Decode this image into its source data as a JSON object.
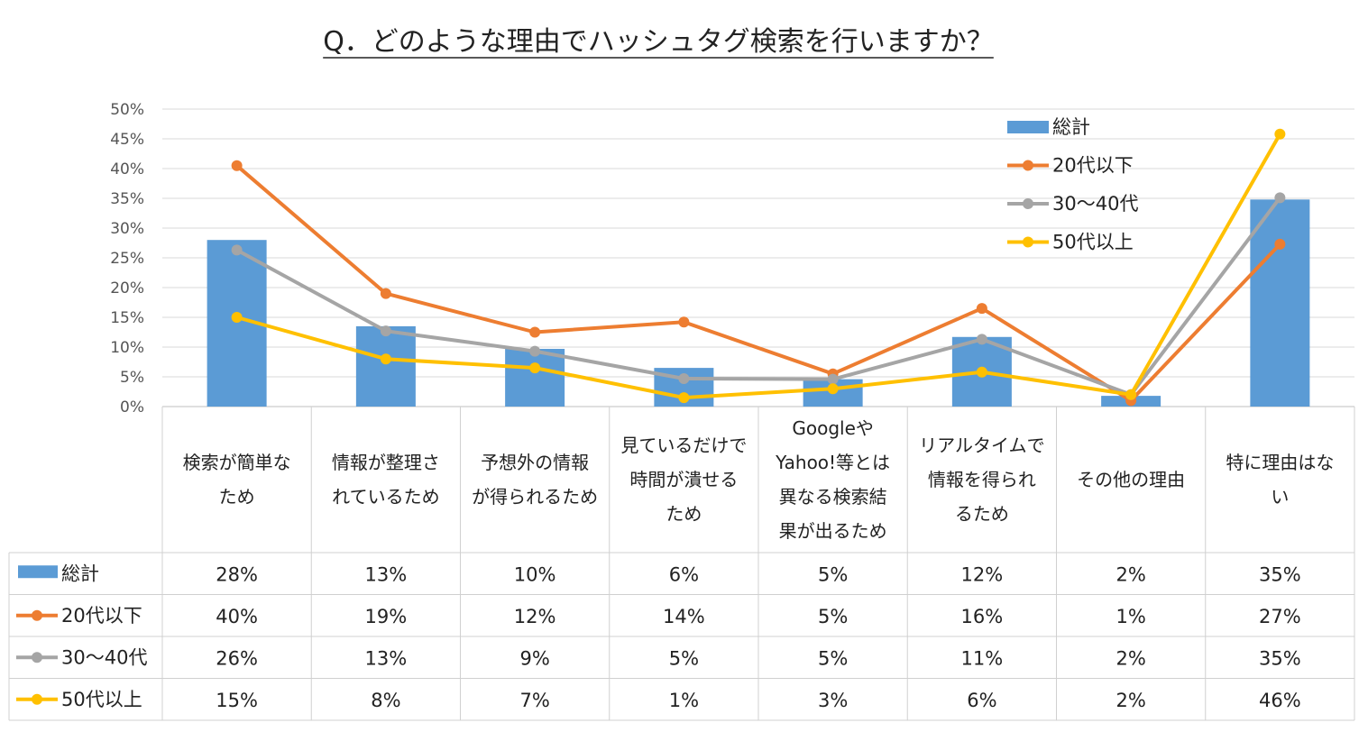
{
  "chart_data": {
    "type": "bar",
    "title": "Q．どのような理由でハッシュタグ検索を行いますか？",
    "ylim": [
      0,
      50
    ],
    "yticks": [
      0,
      5,
      10,
      15,
      20,
      25,
      30,
      35,
      40,
      45,
      50
    ],
    "ytick_labels": [
      "0%",
      "5%",
      "10%",
      "15%",
      "20%",
      "25%",
      "30%",
      "35%",
      "40%",
      "45%",
      "50%"
    ],
    "categories": [
      [
        "検索が簡単な",
        "ため"
      ],
      [
        "情報が整理さ",
        "れているため"
      ],
      [
        "予想外の情報",
        "が得られるため"
      ],
      [
        "見ているだけで",
        "時間が潰せる",
        "ため"
      ],
      [
        "Googleや",
        "Yahoo!等とは",
        "異なる検索結",
        "果が出るため"
      ],
      [
        "リアルタイムで",
        "情報を得られ",
        "るため"
      ],
      [
        "その他の理由"
      ],
      [
        "特に理由はな",
        "い"
      ]
    ],
    "series": [
      {
        "name": "総計",
        "kind": "bar",
        "color": "#5b9bd5",
        "values": [
          28,
          13.5,
          9.7,
          6.5,
          4.6,
          11.7,
          1.8,
          34.8
        ],
        "labels": [
          "28%",
          "13%",
          "10%",
          "6%",
          "5%",
          "12%",
          "2%",
          "35%"
        ]
      },
      {
        "name": "20代以下",
        "kind": "line",
        "color": "#ed7d31",
        "values": [
          40.5,
          19,
          12.5,
          14.2,
          5.5,
          16.5,
          1,
          27.3
        ],
        "labels": [
          "40%",
          "19%",
          "12%",
          "14%",
          "5%",
          "16%",
          "1%",
          "27%"
        ]
      },
      {
        "name": "30～40代",
        "kind": "line",
        "color": "#a5a5a5",
        "values": [
          26.3,
          12.7,
          9.3,
          4.7,
          4.6,
          11.3,
          2,
          35.1
        ],
        "labels": [
          "26%",
          "13%",
          "9%",
          "5%",
          "5%",
          "11%",
          "2%",
          "35%"
        ]
      },
      {
        "name": "50代以上",
        "kind": "line",
        "color": "#ffc000",
        "values": [
          15,
          8,
          6.5,
          1.5,
          3,
          5.8,
          2,
          45.8
        ],
        "labels": [
          "15%",
          "8%",
          "7%",
          "1%",
          "3%",
          "6%",
          "2%",
          "46%"
        ]
      }
    ],
    "legend_position": "top-right",
    "data_table": true
  }
}
